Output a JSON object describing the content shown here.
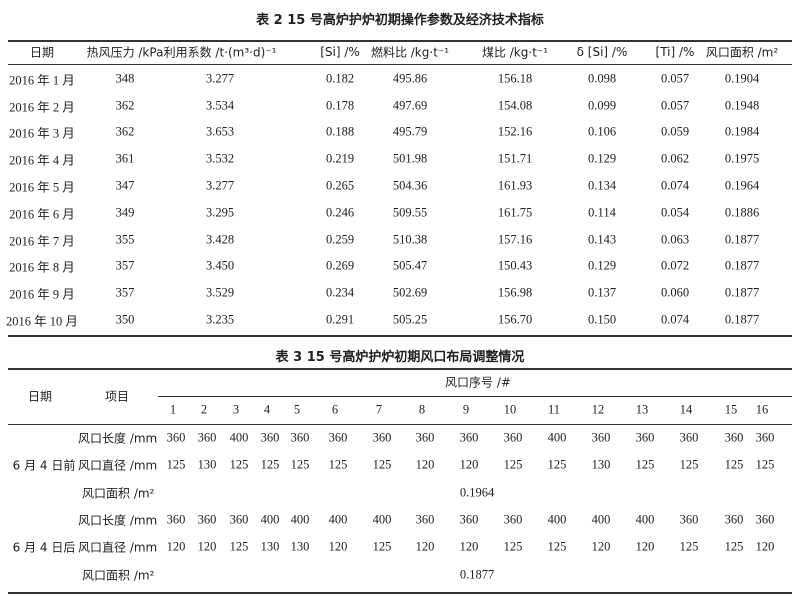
{
  "table2": {
    "title": "表 2   15 号高炉护炉初期操作参数及经济技术指标",
    "headers": [
      "日期",
      "热风压力 /kPa",
      "利用系数 /t·(m³·d)⁻¹",
      "[Si] /%",
      "燃料比 /kg·t⁻¹",
      "煤比 /kg·t⁻¹",
      "δ [Si] /%",
      "[Ti] /%",
      "风口面积 /m²"
    ],
    "rows": [
      [
        "2016 年 1 月",
        "348",
        "3.277",
        "0.182",
        "495.86",
        "156.18",
        "0.098",
        "0.057",
        "0.1904"
      ],
      [
        "2016 年 2 月",
        "362",
        "3.534",
        "0.178",
        "497.69",
        "154.08",
        "0.099",
        "0.057",
        "0.1948"
      ],
      [
        "2016 年 3 月",
        "362",
        "3.653",
        "0.188",
        "495.79",
        "152.16",
        "0.106",
        "0.059",
        "0.1984"
      ],
      [
        "2016 年 4 月",
        "361",
        "3.532",
        "0.219",
        "501.98",
        "151.71",
        "0.129",
        "0.062",
        "0.1975"
      ],
      [
        "2016 年 5 月",
        "347",
        "3.277",
        "0.265",
        "504.36",
        "161.93",
        "0.134",
        "0.074",
        "0.1964"
      ],
      [
        "2016 年 6 月",
        "349",
        "3.295",
        "0.246",
        "509.55",
        "161.75",
        "0.114",
        "0.054",
        "0.1886"
      ],
      [
        "2016 年 7 月",
        "355",
        "3.428",
        "0.259",
        "510.38",
        "157.16",
        "0.143",
        "0.063",
        "0.1877"
      ],
      [
        "2016 年 8 月",
        "357",
        "3.450",
        "0.269",
        "505.47",
        "150.43",
        "0.129",
        "0.072",
        "0.1877"
      ],
      [
        "2016 年 9 月",
        "357",
        "3.529",
        "0.234",
        "502.69",
        "156.98",
        "0.137",
        "0.060",
        "0.1877"
      ],
      [
        "2016 年 10 月",
        "350",
        "3.235",
        "0.291",
        "505.25",
        "156.70",
        "0.150",
        "0.074",
        "0.1877"
      ]
    ]
  },
  "table3": {
    "title": "表 3   15 号高炉护炉初期风口布局调整情况",
    "header_date": "日期",
    "header_item": "项目",
    "header_tuyere": "风口序号 /#",
    "tuyere_numbers": [
      "1",
      "2",
      "3",
      "4",
      "5",
      "6",
      "7",
      "8",
      "9",
      "10",
      "11",
      "12",
      "13",
      "14",
      "15",
      "16"
    ],
    "groups": [
      {
        "date": "6 月 4 日前",
        "rows": [
          {
            "item": "风口长度 /mm",
            "values": [
              "360",
              "360",
              "400",
              "360",
              "360",
              "360",
              "360",
              "360",
              "360",
              "360",
              "400",
              "360",
              "360",
              "360",
              "360",
              "360"
            ]
          },
          {
            "item": "风口直径 /mm",
            "values": [
              "125",
              "130",
              "125",
              "125",
              "125",
              "125",
              "125",
              "120",
              "120",
              "125",
              "125",
              "130",
              "125",
              "125",
              "125",
              "125"
            ]
          }
        ],
        "area_label": "风口面积 /m²",
        "area_value": "0.1964"
      },
      {
        "date": "6 月 4 日后",
        "rows": [
          {
            "item": "风口长度 /mm",
            "values": [
              "360",
              "360",
              "360",
              "400",
              "400",
              "400",
              "400",
              "360",
              "360",
              "360",
              "400",
              "400",
              "400",
              "360",
              "360",
              "360"
            ]
          },
          {
            "item": "风口直径 /mm",
            "values": [
              "120",
              "120",
              "125",
              "130",
              "130",
              "120",
              "125",
              "120",
              "120",
              "125",
              "125",
              "120",
              "120",
              "125",
              "125",
              "120"
            ]
          }
        ],
        "area_label": "风口面积 /m²",
        "area_value": "0.1877"
      }
    ]
  }
}
